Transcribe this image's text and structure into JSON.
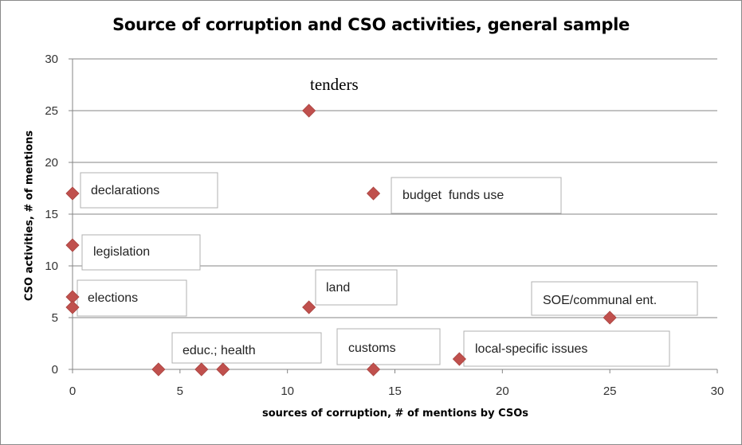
{
  "chart_data": {
    "type": "scatter",
    "title": "Source of corruption and CSO activities, general sample",
    "xlabel": "sources of corruption, # of mentions by CSOs",
    "ylabel": "CSO activities, # of mentions",
    "xlim": [
      0,
      30
    ],
    "ylim": [
      0,
      30
    ],
    "x_ticks": [
      0,
      5,
      10,
      15,
      20,
      25,
      30
    ],
    "y_ticks": [
      0,
      5,
      10,
      15,
      20,
      25,
      30
    ],
    "grid": "horizontal",
    "marker": "diamond",
    "marker_color": "#C0504D",
    "points": [
      {
        "x": 11,
        "y": 25
      },
      {
        "x": 0,
        "y": 17
      },
      {
        "x": 14,
        "y": 17
      },
      {
        "x": 0,
        "y": 12
      },
      {
        "x": 0,
        "y": 7
      },
      {
        "x": 0,
        "y": 6
      },
      {
        "x": 11,
        "y": 6
      },
      {
        "x": 25,
        "y": 5
      },
      {
        "x": 4,
        "y": 0
      },
      {
        "x": 6,
        "y": 0
      },
      {
        "x": 7,
        "y": 0
      },
      {
        "x": 14,
        "y": 0
      },
      {
        "x": 18,
        "y": 1
      }
    ],
    "annotations": [
      {
        "text": "tenders",
        "boxed": false
      },
      {
        "text": "declarations",
        "boxed": true
      },
      {
        "text": "budget  funds use",
        "boxed": true
      },
      {
        "text": "legislation",
        "boxed": true
      },
      {
        "text": "elections",
        "boxed": true
      },
      {
        "text": "land",
        "boxed": true
      },
      {
        "text": "SOE/communal ent.",
        "boxed": true
      },
      {
        "text": "educ.; health",
        "boxed": true
      },
      {
        "text": "customs",
        "boxed": true
      },
      {
        "text": "local-specific issues",
        "boxed": true
      }
    ]
  }
}
